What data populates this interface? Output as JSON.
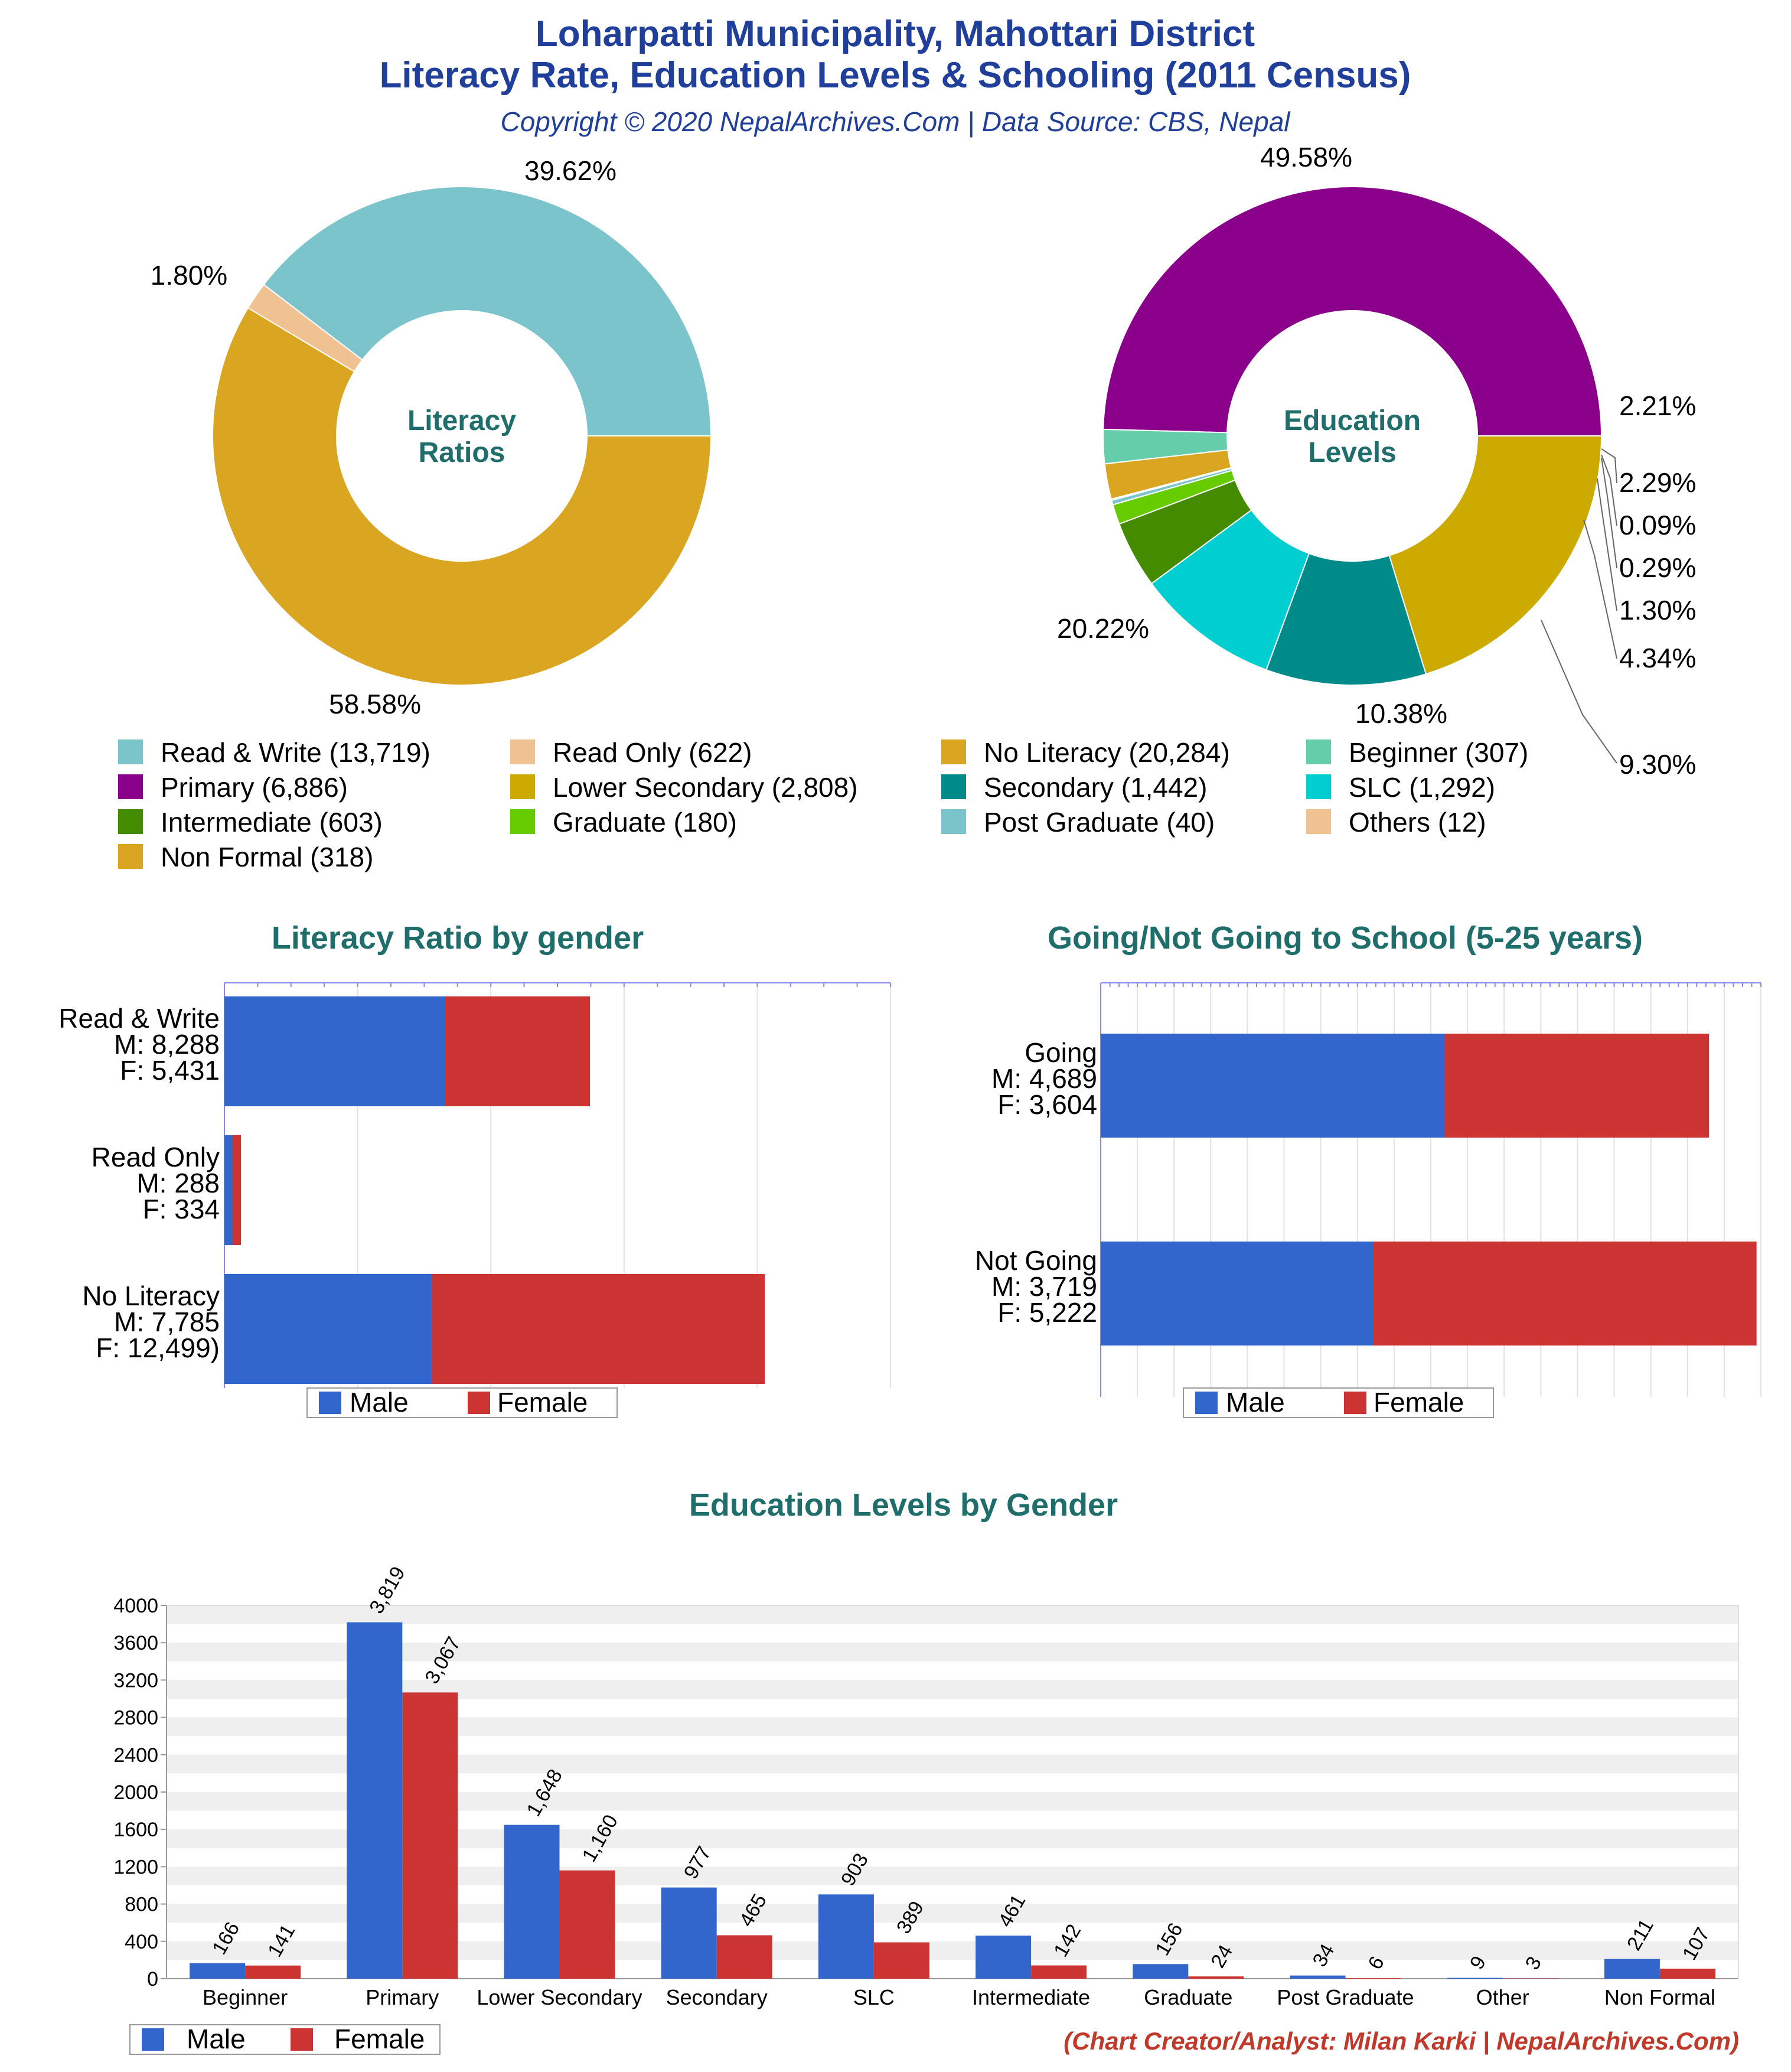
{
  "header": {
    "title_line1": "Loharpatti Municipality, Mahottari District",
    "title_line2": "Literacy Rate, Education Levels & Schooling (2011 Census)",
    "subtitle": "Copyright © 2020 NepalArchives.Com | Data Source: CBS, Nepal"
  },
  "colors": {
    "male": "#3366cc",
    "female": "#cc3333",
    "title": "#1f3f9a",
    "section_title": "#1f6e6b",
    "credit": "#c0392b"
  },
  "legend_labels": {
    "male": "Male",
    "female": "Female"
  },
  "footer": {
    "credit": "(Chart Creator/Analyst: Milan Karki | NepalArchives.Com)"
  },
  "chart_data": [
    {
      "id": "literacy_ratios",
      "type": "pie",
      "center_label": [
        "Literacy",
        "Ratios"
      ],
      "slices": [
        {
          "label": "Read & Write",
          "value": 13719,
          "percent": "39.62%",
          "color": "#7cc4cc",
          "legend": "Read & Write (13,719)"
        },
        {
          "label": "Read Only",
          "value": 622,
          "percent": "1.80%",
          "color": "#f0c292",
          "legend": "Read Only (622)"
        },
        {
          "label": "No Literacy",
          "value": 20284,
          "percent": "58.58%",
          "color": "#daa520",
          "legend": "No Literacy (20,284)"
        }
      ]
    },
    {
      "id": "education_levels",
      "type": "pie",
      "center_label": [
        "Education",
        "Levels"
      ],
      "slices": [
        {
          "label": "Primary",
          "value": 6886,
          "percent": "49.58%",
          "color": "#8b008b",
          "legend": "Primary (6,886)"
        },
        {
          "label": "Beginner",
          "value": 307,
          "percent": "2.21%",
          "color": "#66cdaa",
          "legend": "Beginner (307)"
        },
        {
          "label": "Non Formal",
          "value": 318,
          "percent": "2.29%",
          "color": "#daa520",
          "legend": "Non Formal (318)"
        },
        {
          "label": "Others",
          "value": 12,
          "percent": "0.09%",
          "color": "#f0c292",
          "legend": "Others (12)"
        },
        {
          "label": "Post Graduate",
          "value": 40,
          "percent": "0.29%",
          "color": "#7cc4cc",
          "legend": "Post Graduate (40)"
        },
        {
          "label": "Graduate",
          "value": 180,
          "percent": "1.30%",
          "color": "#66cc00",
          "legend": "Graduate (180)"
        },
        {
          "label": "Intermediate",
          "value": 603,
          "percent": "4.34%",
          "color": "#458b00",
          "legend": "Intermediate (603)"
        },
        {
          "label": "SLC",
          "value": 1292,
          "percent": "9.30%",
          "color": "#00ced1",
          "legend": "SLC (1,292)"
        },
        {
          "label": "Secondary",
          "value": 1442,
          "percent": "10.38%",
          "color": "#008b8b",
          "legend": "Secondary (1,442)"
        },
        {
          "label": "Lower Secondary",
          "value": 2808,
          "percent": "20.22%",
          "color": "#ccaa00",
          "legend": "Lower Secondary (2,808)"
        }
      ],
      "legend_order": [
        "Beginner",
        "Primary",
        "Lower Secondary",
        "Secondary",
        "SLC",
        "Intermediate",
        "Graduate",
        "Post Graduate",
        "Others",
        "Non Formal"
      ]
    },
    {
      "id": "literacy_by_gender",
      "type": "bar",
      "orientation": "horizontal-stacked",
      "title": "Literacy Ratio by gender",
      "categories": [
        "Read & Write",
        "Read Only",
        "No Literacy"
      ],
      "series": [
        {
          "name": "Male",
          "values": [
            8288,
            288,
            7785
          ]
        },
        {
          "name": "Female",
          "values": [
            5431,
            334,
            12499
          ]
        }
      ],
      "labels": [
        [
          "Read & Write",
          "M: 8,288",
          "F: 5,431"
        ],
        [
          "Read Only",
          "M: 288",
          "F: 334"
        ],
        [
          "No Literacy",
          "M: 7,785",
          "F: 12,499)"
        ]
      ],
      "xlim": [
        0,
        25000
      ]
    },
    {
      "id": "school_going",
      "type": "bar",
      "orientation": "horizontal-stacked",
      "title": "Going/Not Going to School (5-25 years)",
      "categories": [
        "Going",
        "Not Going"
      ],
      "series": [
        {
          "name": "Male",
          "values": [
            4689,
            3719
          ]
        },
        {
          "name": "Female",
          "values": [
            3604,
            5222
          ]
        }
      ],
      "labels": [
        [
          "Going",
          "M: 4,689",
          "F: 3,604"
        ],
        [
          "Not Going",
          "M: 3,719",
          "F: 5,222"
        ]
      ],
      "xlim": [
        0,
        9000
      ]
    },
    {
      "id": "education_by_gender",
      "type": "bar",
      "title": "Education Levels by Gender",
      "categories": [
        "Beginner",
        "Primary",
        "Lower Secondary",
        "Secondary",
        "SLC",
        "Intermediate",
        "Graduate",
        "Post Graduate",
        "Other",
        "Non Formal"
      ],
      "series": [
        {
          "name": "Male",
          "values": [
            166,
            3819,
            1648,
            977,
            903,
            461,
            156,
            34,
            9,
            211
          ]
        },
        {
          "name": "Female",
          "values": [
            141,
            3067,
            1160,
            465,
            389,
            142,
            24,
            6,
            3,
            107
          ]
        }
      ],
      "ylim": [
        0,
        4000
      ],
      "yticks": [
        0,
        400,
        800,
        1200,
        1600,
        2000,
        2400,
        2800,
        3200,
        3600,
        4000
      ]
    }
  ]
}
